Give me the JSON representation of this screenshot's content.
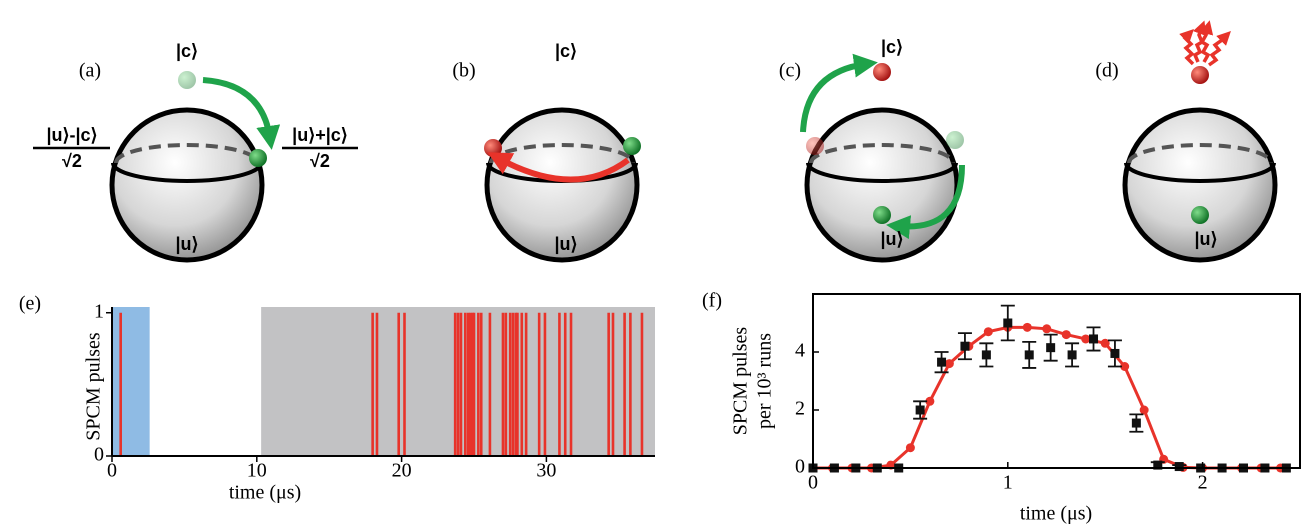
{
  "panels": [
    {
      "label": "(a)",
      "states": [
        "|c⟩",
        "|u⟩"
      ],
      "left": {
        "numerator": "|u⟩-|c⟩",
        "denominator": "√2"
      },
      "right": {
        "numerator": "|u⟩+|c⟩",
        "denominator": "√2"
      }
    },
    {
      "label": "(b)",
      "states": [
        "|c⟩",
        "|u⟩"
      ]
    },
    {
      "label": "(c)",
      "states": [
        "|c⟩",
        "|u⟩"
      ]
    },
    {
      "label": "(d)",
      "states": [
        "|u⟩"
      ]
    }
  ],
  "chart_data": [
    {
      "type": "pulse",
      "label": "(e)",
      "ylabel": "SPCM pulses",
      "xlabel": "time (μs)",
      "x": [
        0.6,
        18.0,
        18.3,
        19.8,
        20.2,
        23.7,
        23.9,
        24.1,
        24.4,
        24.6,
        24.75,
        24.9,
        25.0,
        25.3,
        25.5,
        26.1,
        27.0,
        27.2,
        27.5,
        27.7,
        27.9,
        28.0,
        28.3,
        28.6,
        29.5,
        29.9,
        30.9,
        31.3,
        31.7,
        34.3,
        34.6,
        35.4,
        35.8,
        36.6
      ],
      "values": [
        1,
        1,
        1,
        1,
        1,
        1,
        1,
        1,
        1,
        1,
        1,
        1,
        1,
        1,
        1,
        1,
        1,
        1,
        1,
        1,
        1,
        1,
        1,
        1,
        1,
        1,
        1,
        1,
        1,
        1,
        1,
        1,
        1,
        1
      ],
      "color": "#e8332a",
      "shaded": [
        {
          "from": 0,
          "to": 2.6,
          "color": "#8fbbe4"
        },
        {
          "from": 10.3,
          "to": 37.5,
          "color": "#c2c2c4"
        }
      ],
      "xlim": [
        0,
        37.5
      ],
      "ylim": [
        0,
        1.04
      ],
      "xticks": [
        0,
        10,
        20,
        30
      ],
      "yticks": [
        0,
        1
      ]
    },
    {
      "type": "combo",
      "label": "(f)",
      "ylabel": [
        "SPCM pulses",
        "per 10³ runs"
      ],
      "xlabel": "time (μs)",
      "series": [
        {
          "type": "line",
          "color": "#e8332a",
          "x": [
            0,
            0.1,
            0.2,
            0.3,
            0.4,
            0.5,
            0.6,
            0.7,
            0.8,
            0.9,
            1.0,
            1.1,
            1.2,
            1.3,
            1.4,
            1.5,
            1.6,
            1.7,
            1.8,
            1.9,
            2.0,
            2.1,
            2.2,
            2.3,
            2.4
          ],
          "values": [
            0,
            0,
            0,
            0,
            0.1,
            0.7,
            2.3,
            3.6,
            4.2,
            4.7,
            4.85,
            4.85,
            4.8,
            4.6,
            4.45,
            4.3,
            3.5,
            2.0,
            0.3,
            0.02,
            0,
            0,
            0,
            0,
            0
          ]
        },
        {
          "type": "errorbar",
          "color": "#111111",
          "x": [
            0,
            0.11,
            0.22,
            0.33,
            0.44,
            0.55,
            0.66,
            0.78,
            0.89,
            1.0,
            1.11,
            1.22,
            1.33,
            1.44,
            1.55,
            1.66,
            1.77,
            1.88,
            1.99,
            2.1,
            2.21,
            2.32,
            2.43
          ],
          "values": [
            0,
            0,
            0,
            0,
            0,
            2.0,
            3.65,
            4.2,
            3.9,
            5.0,
            3.9,
            4.15,
            3.9,
            4.45,
            3.95,
            1.55,
            0.1,
            0.05,
            0,
            0,
            0,
            0,
            0
          ],
          "errors": [
            0,
            0,
            0,
            0,
            0,
            0.3,
            0.35,
            0.45,
            0.4,
            0.6,
            0.45,
            0.45,
            0.4,
            0.4,
            0.45,
            0.3,
            0.1,
            0.05,
            0,
            0,
            0,
            0,
            0
          ]
        }
      ],
      "xlim": [
        0,
        2.5
      ],
      "ylim": [
        0,
        6
      ],
      "xticks": [
        0,
        1,
        2
      ],
      "yticks": [
        0,
        2,
        4
      ]
    }
  ]
}
